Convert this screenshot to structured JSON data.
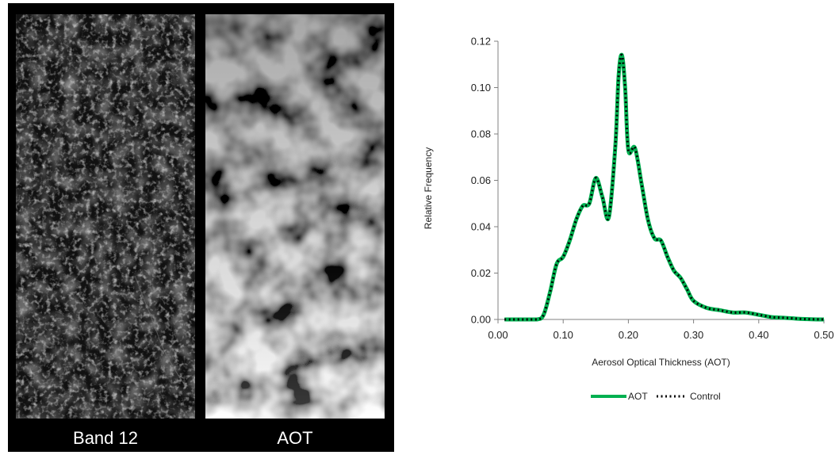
{
  "panels": {
    "band12_label": "Band 12",
    "aot_label": "AOT"
  },
  "chart_data": {
    "type": "line",
    "xlabel": "Aerosol Optical Thickness (AOT)",
    "ylabel": "Relative Frequency",
    "xlim": [
      0.0,
      0.5
    ],
    "ylim": [
      0.0,
      0.12
    ],
    "xticks": [
      "0.00",
      "0.10",
      "0.20",
      "0.30",
      "0.40",
      "0.50"
    ],
    "yticks": [
      "0.00",
      "0.02",
      "0.04",
      "0.06",
      "0.08",
      "0.10",
      "0.12"
    ],
    "grid": false,
    "legend": "bottom",
    "colors": {
      "AOT": "#00b050",
      "Control": "#000000"
    },
    "x": [
      0.01,
      0.02,
      0.04,
      0.06,
      0.07,
      0.08,
      0.09,
      0.1,
      0.11,
      0.12,
      0.13,
      0.14,
      0.15,
      0.16,
      0.17,
      0.18,
      0.185,
      0.19,
      0.195,
      0.2,
      0.21,
      0.22,
      0.23,
      0.24,
      0.25,
      0.26,
      0.27,
      0.28,
      0.29,
      0.3,
      0.32,
      0.34,
      0.36,
      0.38,
      0.4,
      0.42,
      0.44,
      0.46,
      0.48,
      0.5
    ],
    "series": [
      {
        "name": "AOT",
        "values": [
          0.0,
          0.0,
          0.0,
          0.0,
          0.002,
          0.012,
          0.024,
          0.027,
          0.034,
          0.043,
          0.049,
          0.05,
          0.061,
          0.053,
          0.044,
          0.075,
          0.105,
          0.114,
          0.1,
          0.073,
          0.074,
          0.059,
          0.043,
          0.035,
          0.034,
          0.027,
          0.021,
          0.018,
          0.013,
          0.008,
          0.005,
          0.004,
          0.003,
          0.003,
          0.002,
          0.001,
          0.0007,
          0.0003,
          0.0001,
          0.0
        ]
      },
      {
        "name": "Control",
        "values": [
          0.0,
          0.0,
          0.0,
          0.0,
          0.002,
          0.012,
          0.024,
          0.027,
          0.034,
          0.043,
          0.049,
          0.05,
          0.061,
          0.053,
          0.044,
          0.075,
          0.105,
          0.114,
          0.1,
          0.073,
          0.074,
          0.059,
          0.043,
          0.035,
          0.034,
          0.027,
          0.021,
          0.018,
          0.013,
          0.008,
          0.005,
          0.004,
          0.003,
          0.003,
          0.002,
          0.001,
          0.0007,
          0.0003,
          0.0001,
          0.0
        ]
      }
    ]
  }
}
